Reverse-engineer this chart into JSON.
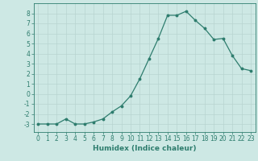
{
  "x": [
    0,
    1,
    2,
    3,
    4,
    5,
    6,
    7,
    8,
    9,
    10,
    11,
    12,
    13,
    14,
    15,
    16,
    17,
    18,
    19,
    20,
    21,
    22,
    23
  ],
  "y": [
    -3,
    -3,
    -3,
    -2.5,
    -3,
    -3,
    -2.8,
    -2.5,
    -1.8,
    -1.2,
    -0.2,
    1.5,
    3.5,
    5.5,
    7.8,
    7.8,
    8.2,
    7.3,
    6.5,
    5.4,
    5.5,
    3.8,
    2.5,
    2.3
  ],
  "line_color": "#2e7d6e",
  "bg_color": "#cde8e4",
  "grid_color": "#b8d4d0",
  "xlabel": "Humidex (Indice chaleur)",
  "ylim": [
    -3.8,
    9
  ],
  "xlim": [
    -0.5,
    23.5
  ],
  "yticks": [
    -3,
    -2,
    -1,
    0,
    1,
    2,
    3,
    4,
    5,
    6,
    7,
    8
  ],
  "xticks": [
    0,
    1,
    2,
    3,
    4,
    5,
    6,
    7,
    8,
    9,
    10,
    11,
    12,
    13,
    14,
    15,
    16,
    17,
    18,
    19,
    20,
    21,
    22,
    23
  ],
  "tick_label_fontsize": 5.5,
  "xlabel_fontsize": 6.5,
  "marker": "o",
  "markersize": 1.8,
  "linewidth": 0.9
}
